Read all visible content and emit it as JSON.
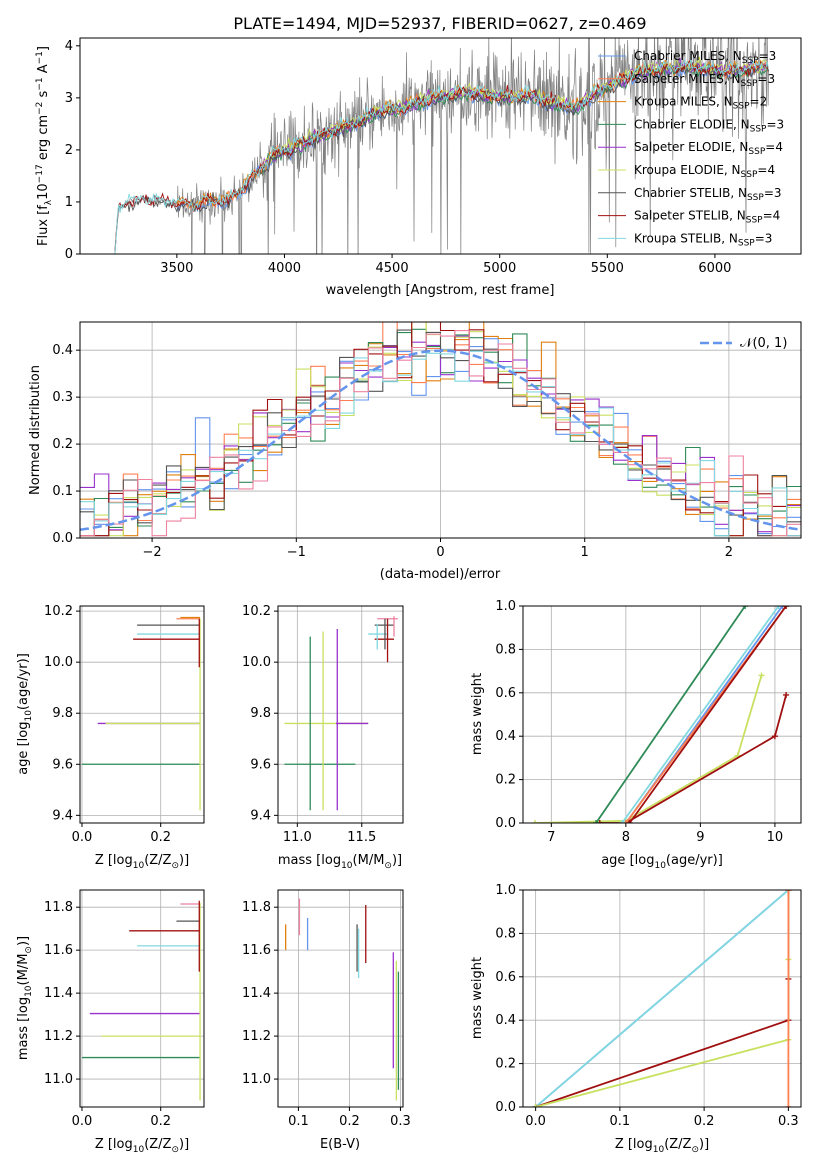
{
  "colors": {
    "chabrier_miles": "#6495ED",
    "salpeter_miles": "#FF7F50",
    "kroupa_miles": "#E08010",
    "chabrier_elodie": "#2E8B57",
    "salpeter_elodie": "#9932CC",
    "kroupa_elodie": "#C8E060",
    "chabrier_stelib": "#555555",
    "salpeter_stelib": "#A01010",
    "kroupa_stelib": "#80D8E0",
    "data": "#808080",
    "pink": "#EE82A0"
  },
  "chart_data": [
    {
      "id": "spectrum",
      "type": "line",
      "title": "PLATE=1494, MJD=52937, FIBERID=0627, z=0.469",
      "xlabel": "wavelength [Angstrom, rest frame]",
      "ylabel_main": "Flux [f",
      "ylabel_sub": "λ",
      "ylabel_rest": "10",
      "ylabel_exp": "−17",
      "ylabel_units": " erg cm",
      "ylabel_exp2": "−2",
      "ylabel_s": " s",
      "ylabel_exp3": "−1",
      "ylabel_A": " A",
      "ylabel_exp4": "−1",
      "ylabel_end": "]",
      "xlim": [
        3050,
        6400
      ],
      "ylim": [
        0,
        4.15
      ],
      "xticks": [
        3500,
        4000,
        4500,
        5000,
        5500,
        6000
      ],
      "yticks": [
        0,
        1,
        2,
        3,
        4
      ],
      "anchors": {
        "x": [
          3210,
          3230,
          3270,
          3350,
          3450,
          3550,
          3650,
          3750,
          3850,
          3950,
          4050,
          4150,
          4250,
          4350,
          4450,
          4550,
          4650,
          4750,
          4850,
          4950,
          5050,
          5150,
          5250,
          5350,
          5450,
          5550,
          5650,
          5750,
          5850,
          5950,
          6050,
          6150,
          6250
        ],
        "y": [
          0.0,
          0.9,
          1.0,
          1.05,
          1.0,
          0.95,
          1.0,
          1.05,
          1.45,
          1.9,
          2.05,
          2.25,
          2.4,
          2.55,
          2.75,
          2.8,
          2.95,
          3.05,
          3.1,
          3.05,
          3.0,
          3.05,
          2.9,
          2.8,
          3.1,
          3.3,
          3.5,
          3.55,
          3.6,
          3.55,
          3.5,
          3.55,
          3.6
        ]
      },
      "legend": [
        {
          "name": "Chabrier MILES, N",
          "sub": "SSP",
          "val": "=3",
          "color": "chabrier_miles"
        },
        {
          "name": "Salpeter MILES, N",
          "sub": "SSP",
          "val": "=3",
          "color": "salpeter_miles"
        },
        {
          "name": "Kroupa MILES, N",
          "sub": "SSP",
          "val": "=2",
          "color": "kroupa_miles"
        },
        {
          "name": "Chabrier ELODIE, N",
          "sub": "SSP",
          "val": "=3",
          "color": "chabrier_elodie"
        },
        {
          "name": "Salpeter ELODIE, N",
          "sub": "SSP",
          "val": "=4",
          "color": "salpeter_elodie"
        },
        {
          "name": "Kroupa ELODIE, N",
          "sub": "SSP",
          "val": "=4",
          "color": "kroupa_elodie"
        },
        {
          "name": "Chabrier STELIB, N",
          "sub": "SSP",
          "val": "=3",
          "color": "chabrier_stelib"
        },
        {
          "name": "Salpeter STELIB, N",
          "sub": "SSP",
          "val": "=4",
          "color": "salpeter_stelib"
        },
        {
          "name": "Kroupa STELIB, N",
          "sub": "SSP",
          "val": "=3",
          "color": "kroupa_stelib"
        }
      ]
    },
    {
      "id": "residuals",
      "type": "line",
      "xlabel": "(data-model)/error",
      "ylabel": "Normed distribution",
      "xlim": [
        -2.5,
        2.5
      ],
      "ylim": [
        0,
        0.46
      ],
      "xticks": [
        -2,
        -1,
        0,
        1,
        2
      ],
      "xtick_labels": [
        "−2",
        "−1",
        "0",
        "1",
        "2"
      ],
      "yticks": [
        0.0,
        0.1,
        0.2,
        0.3,
        0.4
      ],
      "ytick_labels": [
        "0.0",
        "0.1",
        "0.2",
        "0.3",
        "0.4"
      ],
      "grid": true,
      "legend": [
        {
          "name": "𝒩(0, 1)",
          "color": "chabrier_miles"
        }
      ],
      "bin_width": 0.1,
      "series_colors": [
        "chabrier_miles",
        "salpeter_miles",
        "kroupa_miles",
        "chabrier_elodie",
        "salpeter_elodie",
        "kroupa_elodie",
        "chabrier_stelib",
        "salpeter_stelib",
        "kroupa_stelib",
        "pink"
      ]
    },
    {
      "id": "age_vs_Z",
      "type": "scatter",
      "xlabel": "Z [log",
      "xlabel_sub": "10",
      "xlabel_rest": "(Z/Z",
      "xlabel_sub2": "⊙",
      "xlabel_end": ")]",
      "ylabel": "age  [log",
      "ylabel_sub": "10",
      "ylabel_rest": "(age/yr)]",
      "xlim": [
        -0.005,
        0.31
      ],
      "ylim": [
        9.37,
        10.22
      ],
      "xticks": [
        0.0,
        0.2
      ],
      "xtick_labels": [
        "0.0",
        "0.2"
      ],
      "yticks": [
        9.4,
        9.6,
        9.8,
        10.0,
        10.2
      ],
      "ytick_labels": [
        "9.4",
        "9.6",
        "9.8",
        "10.0",
        "10.2"
      ],
      "bars": [
        {
          "y": 9.6,
          "x0": 0.0,
          "x1": 0.3,
          "color": "chabrier_elodie"
        },
        {
          "y": 9.76,
          "x0": 0.04,
          "x1": 0.3,
          "color": "salpeter_elodie"
        },
        {
          "y": 9.76,
          "x0": 0.06,
          "x1": 0.3,
          "color": "kroupa_elodie"
        },
        {
          "y": 10.09,
          "x0": 0.13,
          "x1": 0.3,
          "color": "salpeter_stelib"
        },
        {
          "y": 10.11,
          "x0": 0.14,
          "x1": 0.3,
          "color": "kroupa_stelib"
        },
        {
          "y": 10.145,
          "x0": 0.14,
          "x1": 0.3,
          "color": "chabrier_stelib"
        },
        {
          "y": 10.17,
          "x0": 0.24,
          "x1": 0.3,
          "color": "salpeter_miles"
        },
        {
          "y": 10.175,
          "x0": 0.25,
          "x1": 0.3,
          "color": "kroupa_miles"
        }
      ],
      "vbars": [
        {
          "x": 0.3,
          "y0": 9.42,
          "y1": 10.17,
          "color": "kroupa_elodie"
        },
        {
          "x": 0.298,
          "y0": 9.98,
          "y1": 10.17,
          "color": "salpeter_stelib"
        }
      ]
    },
    {
      "id": "age_vs_mass",
      "type": "scatter",
      "xlabel": "mass [log",
      "xlabel_sub": "10",
      "xlabel_rest": "(M/M",
      "xlabel_sub2": "⊙",
      "xlabel_end": ")]",
      "xlim": [
        10.85,
        11.82
      ],
      "ylim": [
        9.37,
        10.22
      ],
      "xticks": [
        11.0,
        11.5
      ],
      "xtick_labels": [
        "11.0",
        "11.5"
      ],
      "yticks": [
        9.4,
        9.6,
        9.8,
        10.0,
        10.2
      ],
      "ytick_labels": [
        "9.4",
        "9.6",
        "9.8",
        "10.0",
        "10.2"
      ],
      "bars": [
        {
          "y": 9.6,
          "x0": 10.9,
          "x1": 11.45,
          "color": "chabrier_elodie"
        },
        {
          "y": 9.76,
          "x0": 10.9,
          "x1": 11.55,
          "color": "kroupa_elodie"
        },
        {
          "y": 9.76,
          "x0": 11.3,
          "x1": 11.55,
          "color": "salpeter_elodie"
        },
        {
          "y": 10.09,
          "x0": 11.6,
          "x1": 11.75,
          "color": "salpeter_stelib"
        },
        {
          "y": 10.11,
          "x0": 11.55,
          "x1": 11.7,
          "color": "kroupa_stelib"
        },
        {
          "y": 10.145,
          "x0": 11.6,
          "x1": 11.75,
          "color": "chabrier_stelib"
        },
        {
          "y": 10.17,
          "x0": 11.62,
          "x1": 11.78,
          "color": "pink"
        }
      ],
      "vbars": [
        {
          "x": 11.1,
          "y0": 9.42,
          "y1": 10.1,
          "color": "chabrier_elodie"
        },
        {
          "x": 11.2,
          "y0": 9.42,
          "y1": 10.12,
          "color": "kroupa_elodie"
        },
        {
          "x": 11.31,
          "y0": 9.42,
          "y1": 10.13,
          "color": "salpeter_elodie"
        },
        {
          "x": 11.62,
          "y0": 10.05,
          "y1": 10.15,
          "color": "kroupa_stelib"
        },
        {
          "x": 11.68,
          "y0": 10.05,
          "y1": 10.17,
          "color": "chabrier_stelib"
        },
        {
          "x": 11.7,
          "y0": 10.0,
          "y1": 10.17,
          "color": "salpeter_stelib"
        },
        {
          "x": 11.75,
          "y0": 10.1,
          "y1": 10.18,
          "color": "pink"
        }
      ]
    },
    {
      "id": "mw_vs_age",
      "type": "line",
      "xlabel": "age  [log",
      "xlabel_sub": "10",
      "xlabel_rest": "(age/yr)]",
      "ylabel": "mass weight",
      "xlim": [
        6.62,
        10.35
      ],
      "ylim": [
        0,
        1.0
      ],
      "xticks": [
        7,
        8,
        9,
        10
      ],
      "xtick_labels": [
        "7",
        "8",
        "9",
        "10"
      ],
      "yticks": [
        0.0,
        0.2,
        0.4,
        0.6,
        0.8,
        1.0
      ],
      "ytick_labels": [
        "0.0",
        "0.2",
        "0.4",
        "0.6",
        "0.8",
        "1.0"
      ],
      "grid": true,
      "series": [
        {
          "color": "kroupa_elodie",
          "x": [
            6.78,
            8.0,
            9.5,
            9.82
          ],
          "y": [
            0.0,
            0.01,
            0.31,
            0.68
          ]
        },
        {
          "color": "salpeter_stelib",
          "x": [
            7.65,
            8.0,
            10.0,
            10.15
          ],
          "y": [
            0.0,
            0.0,
            0.4,
            0.59
          ]
        },
        {
          "color": "chabrier_elodie",
          "x": [
            7.6,
            9.6
          ],
          "y": [
            0.0,
            1.0
          ]
        },
        {
          "color": "chabrier_miles",
          "x": [
            8.0,
            10.1
          ],
          "y": [
            0.0,
            1.0
          ]
        },
        {
          "color": "salpeter_miles",
          "x": [
            8.0,
            10.15
          ],
          "y": [
            0.0,
            1.0
          ]
        },
        {
          "color": "kroupa_stelib",
          "x": [
            7.95,
            10.05
          ],
          "y": [
            0.0,
            1.0
          ]
        },
        {
          "color": "salpeter_stelib",
          "x": [
            8.05,
            10.15
          ],
          "y": [
            0.0,
            1.0
          ]
        }
      ]
    },
    {
      "id": "mass_vs_Z",
      "type": "scatter",
      "xlabel": "Z [log",
      "xlabel_sub": "10",
      "xlabel_rest": "(Z/Z",
      "xlabel_sub2": "⊙",
      "xlabel_end": ")]",
      "ylabel": "mass [log",
      "ylabel_sub": "10",
      "ylabel_rest": "(M/M",
      "ylabel_sub2": "⊙",
      "ylabel_end": ")]",
      "xlim": [
        -0.005,
        0.31
      ],
      "ylim": [
        10.87,
        11.88
      ],
      "xticks": [
        0.0,
        0.2
      ],
      "xtick_labels": [
        "0.0",
        "0.2"
      ],
      "yticks": [
        11.0,
        11.2,
        11.4,
        11.6,
        11.8
      ],
      "ytick_labels": [
        "11.0",
        "11.2",
        "11.4",
        "11.6",
        "11.8"
      ],
      "bars": [
        {
          "y": 11.1,
          "x0": 0.0,
          "x1": 0.3,
          "color": "chabrier_elodie"
        },
        {
          "y": 11.2,
          "x0": 0.05,
          "x1": 0.3,
          "color": "kroupa_elodie"
        },
        {
          "y": 11.305,
          "x0": 0.02,
          "x1": 0.3,
          "color": "salpeter_elodie"
        },
        {
          "y": 11.62,
          "x0": 0.14,
          "x1": 0.3,
          "color": "kroupa_stelib"
        },
        {
          "y": 11.69,
          "x0": 0.12,
          "x1": 0.3,
          "color": "salpeter_stelib"
        },
        {
          "y": 11.735,
          "x0": 0.24,
          "x1": 0.3,
          "color": "chabrier_stelib"
        },
        {
          "y": 11.815,
          "x0": 0.25,
          "x1": 0.3,
          "color": "pink"
        }
      ],
      "vbars": [
        {
          "x": 0.3,
          "y0": 10.9,
          "y1": 11.82,
          "color": "kroupa_elodie"
        },
        {
          "x": 0.298,
          "y0": 11.5,
          "y1": 11.83,
          "color": "salpeter_stelib"
        }
      ]
    },
    {
      "id": "mass_vs_ebv",
      "type": "scatter",
      "xlabel": "E(B-V)",
      "xlim": [
        0.06,
        0.305
      ],
      "ylim": [
        10.87,
        11.88
      ],
      "xticks": [
        0.1,
        0.2,
        0.3
      ],
      "xtick_labels": [
        "0.1",
        "0.2",
        "0.3"
      ],
      "yticks": [
        11.0,
        11.2,
        11.4,
        11.6,
        11.8
      ],
      "ytick_labels": [
        "11.0",
        "11.2",
        "11.4",
        "11.6",
        "11.8"
      ],
      "vbars": [
        {
          "x": 0.075,
          "y0": 11.6,
          "y1": 11.72,
          "color": "kroupa_miles"
        },
        {
          "x": 0.102,
          "y0": 11.67,
          "y1": 11.84,
          "color": "pink"
        },
        {
          "x": 0.118,
          "y0": 11.6,
          "y1": 11.75,
          "color": "chabrier_miles"
        },
        {
          "x": 0.215,
          "y0": 11.5,
          "y1": 11.72,
          "color": "chabrier_stelib"
        },
        {
          "x": 0.218,
          "y0": 11.47,
          "y1": 11.7,
          "color": "kroupa_stelib"
        },
        {
          "x": 0.232,
          "y0": 11.54,
          "y1": 11.81,
          "color": "salpeter_stelib"
        },
        {
          "x": 0.286,
          "y0": 11.05,
          "y1": 11.59,
          "color": "salpeter_elodie"
        },
        {
          "x": 0.292,
          "y0": 10.9,
          "y1": 11.55,
          "color": "kroupa_elodie"
        },
        {
          "x": 0.296,
          "y0": 10.95,
          "y1": 11.5,
          "color": "chabrier_elodie"
        }
      ]
    },
    {
      "id": "mw_vs_Z",
      "type": "line",
      "xlabel": "Z [log",
      "xlabel_sub": "10",
      "xlabel_rest": "(Z/Z",
      "xlabel_sub2": "⊙",
      "xlabel_end": ")]",
      "ylabel": "mass weight",
      "xlim": [
        -0.015,
        0.315
      ],
      "ylim": [
        0,
        1.0
      ],
      "xticks": [
        0.0,
        0.1,
        0.2,
        0.3
      ],
      "xtick_labels": [
        "0.0",
        "0.1",
        "0.2",
        "0.3"
      ],
      "yticks": [
        0.0,
        0.2,
        0.4,
        0.6,
        0.8,
        1.0
      ],
      "ytick_labels": [
        "0.0",
        "0.2",
        "0.4",
        "0.6",
        "0.8",
        "1.0"
      ],
      "grid": true,
      "series": [
        {
          "color": "chabrier_miles",
          "x": [
            0.0,
            0.3
          ],
          "y": [
            0.0,
            1.0
          ]
        },
        {
          "color": "kroupa_stelib",
          "x": [
            0.0,
            0.3
          ],
          "y": [
            0.0,
            1.0
          ]
        },
        {
          "color": "salpeter_stelib",
          "x": [
            0.0,
            0.3,
            0.3,
            0.3
          ],
          "y": [
            0.0,
            0.4,
            0.59,
            1.0
          ]
        },
        {
          "color": "kroupa_elodie",
          "x": [
            0.0,
            0.3,
            0.3,
            0.3
          ],
          "y": [
            0.0,
            0.31,
            0.68,
            1.0
          ]
        },
        {
          "color": "salpeter_miles",
          "x": [
            0.3,
            0.3
          ],
          "y": [
            0.0,
            1.0
          ]
        }
      ]
    }
  ]
}
